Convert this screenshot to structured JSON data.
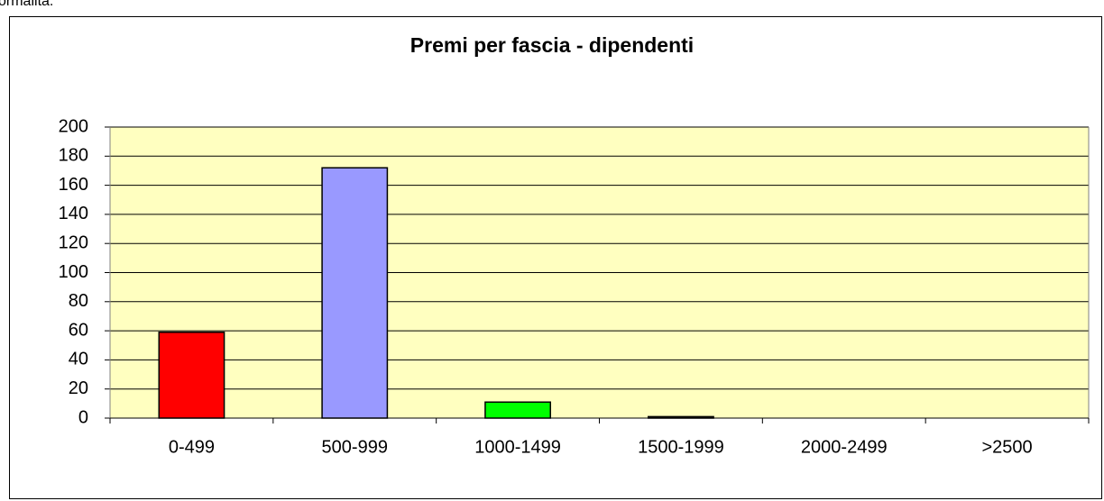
{
  "caption": "ormalità.",
  "chart_data": {
    "type": "bar",
    "title": "Premi per fascia - dipendenti",
    "categories": [
      "0-499",
      "500-999",
      "1000-1499",
      "1500-1999",
      "2000-2499",
      ">2500"
    ],
    "values": [
      59,
      172,
      11,
      1,
      0,
      0
    ],
    "colors": [
      "#ff0000",
      "#9999ff",
      "#00ff00",
      "#000000",
      "#000000",
      "#000000"
    ],
    "ylim": [
      0,
      200
    ],
    "yticks": [
      0,
      20,
      40,
      60,
      80,
      100,
      120,
      140,
      160,
      180,
      200
    ],
    "grid": true
  }
}
